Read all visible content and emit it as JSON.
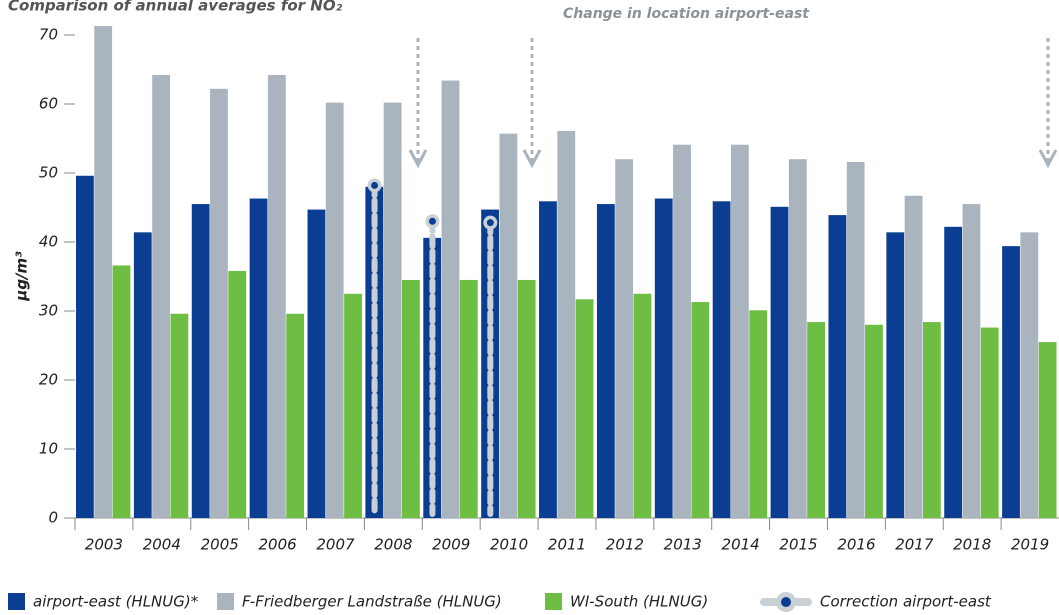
{
  "chart_data": {
    "type": "bar",
    "title": "Comparison of annual averages for NO₂",
    "annotation": "Change in location airport-east",
    "ylabel": "µg/m³",
    "categories": [
      "2003",
      "2004",
      "2005",
      "2006",
      "2007",
      "2008",
      "2009",
      "2010",
      "2011",
      "2012",
      "2013",
      "2014",
      "2015",
      "2016",
      "2017",
      "2018",
      "2019"
    ],
    "series": [
      {
        "name": "airport-east (HLNUG)*",
        "color": "#0b3e92",
        "values": [
          49.6,
          41.4,
          45.5,
          46.3,
          44.7,
          48.0,
          40.6,
          44.7,
          45.9,
          45.5,
          46.3,
          45.9,
          45.1,
          43.9,
          41.4,
          42.2,
          39.4
        ]
      },
      {
        "name": "F-Friedberger Landstraße (HLNUG)",
        "color": "#a9b4be",
        "values": [
          71.3,
          64.2,
          62.2,
          64.2,
          60.2,
          60.2,
          63.4,
          55.7,
          56.1,
          52.0,
          54.1,
          54.1,
          52.0,
          51.6,
          46.7,
          45.5,
          41.4
        ]
      },
      {
        "name": "WI-South (HLNUG)",
        "color": "#6fbe44",
        "values": [
          36.6,
          29.6,
          35.8,
          29.6,
          32.5,
          34.5,
          34.5,
          34.5,
          31.7,
          32.5,
          31.3,
          30.1,
          28.4,
          28.0,
          28.4,
          27.6,
          25.5
        ]
      },
      {
        "name": "Correction airport-east",
        "color": "#c9d0d6",
        "values": [
          null,
          null,
          null,
          null,
          null,
          48.2,
          43.0,
          42.8,
          null,
          null,
          null,
          null,
          null,
          null,
          null,
          null,
          null
        ]
      }
    ],
    "ylim": [
      0,
      70
    ],
    "yticks": [
      0,
      10,
      20,
      30,
      40,
      50,
      60,
      70
    ]
  }
}
